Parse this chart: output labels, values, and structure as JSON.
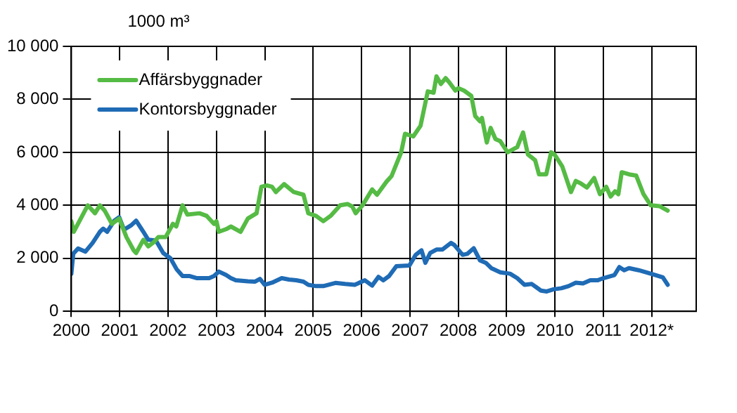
{
  "chart_data": {
    "type": "line",
    "ylabel": "1000 m³",
    "xlim": [
      2000,
      2012.92
    ],
    "xticks": [
      2000,
      2001,
      2002,
      2003,
      2004,
      2005,
      2006,
      2007,
      2008,
      2009,
      2010,
      2011,
      {
        "value": 2012,
        "label": "2012*"
      }
    ],
    "ylim": [
      0,
      10000
    ],
    "yticks": [
      0,
      {
        "value": 2000,
        "label": "2 000"
      },
      {
        "value": 4000,
        "label": "4 000"
      },
      {
        "value": 6000,
        "label": "6 000"
      },
      {
        "value": 8000,
        "label": "8 000"
      },
      {
        "value": 10000,
        "label": "10 000"
      }
    ],
    "grid": true,
    "legend": "top left",
    "marker": "none",
    "line_style": "solid",
    "series": [
      {
        "name": "Affärsbyggnader",
        "color": "#55bb44",
        "x": [
          2000.0,
          2000.05,
          2000.34,
          2000.49,
          2000.59,
          2000.69,
          2000.84,
          2000.99,
          2001.14,
          2001.29,
          2001.34,
          2001.49,
          2001.59,
          2001.7,
          2001.8,
          2001.95,
          2002.1,
          2002.17,
          2002.3,
          2002.4,
          2002.65,
          2002.8,
          2002.95,
          2003.0,
          2003.05,
          2003.2,
          2003.3,
          2003.5,
          2003.65,
          2003.83,
          2003.93,
          2004.05,
          2004.15,
          2004.23,
          2004.4,
          2004.6,
          2004.8,
          2004.9,
          2005.06,
          2005.21,
          2005.36,
          2005.56,
          2005.71,
          2005.81,
          2005.88,
          2006.02,
          2006.22,
          2006.32,
          2006.52,
          2006.62,
          2006.82,
          2006.9,
          2007.07,
          2007.22,
          2007.37,
          2007.49,
          2007.55,
          2007.64,
          2007.74,
          2007.82,
          2007.94,
          2008.0,
          2008.12,
          2008.27,
          2008.35,
          2008.45,
          2008.49,
          2008.59,
          2008.67,
          2008.77,
          2008.87,
          2009.02,
          2009.22,
          2009.34,
          2009.44,
          2009.59,
          2009.67,
          2009.82,
          2009.92,
          2009.99,
          2010.15,
          2010.33,
          2010.43,
          2010.53,
          2010.66,
          2010.81,
          2010.93,
          2011.06,
          2011.15,
          2011.24,
          2011.31,
          2011.38,
          2011.53,
          2011.68,
          2011.83,
          2011.98,
          2012.16,
          2012.33
        ],
        "values": [
          3400,
          3000,
          4000,
          3700,
          4000,
          3800,
          3300,
          3500,
          2800,
          2300,
          2200,
          2700,
          2450,
          2600,
          2800,
          2800,
          3300,
          3200,
          4000,
          3650,
          3700,
          3600,
          3300,
          3400,
          3000,
          3100,
          3200,
          3000,
          3500,
          3700,
          4700,
          4750,
          4700,
          4500,
          4800,
          4500,
          4400,
          3700,
          3600,
          3400,
          3600,
          4000,
          4050,
          3950,
          3700,
          4000,
          4600,
          4400,
          4900,
          5100,
          6000,
          6700,
          6600,
          7000,
          8300,
          8250,
          8870,
          8580,
          8800,
          8630,
          8330,
          8420,
          8330,
          8130,
          7370,
          7170,
          7300,
          6370,
          6920,
          6500,
          6420,
          6000,
          6200,
          6750,
          5920,
          5700,
          5170,
          5170,
          6000,
          5920,
          5470,
          4500,
          4920,
          4830,
          4670,
          5030,
          4420,
          4700,
          4330,
          4530,
          4420,
          5250,
          5170,
          5120,
          4420,
          4000,
          3970,
          3800
        ]
      },
      {
        "name": "Kontorsbyggnader",
        "color": "#1f6bb5",
        "x": [
          2000.0,
          2000.04,
          2000.14,
          2000.29,
          2000.44,
          2000.59,
          2000.66,
          2000.74,
          2000.89,
          2000.99,
          2001.09,
          2001.24,
          2001.34,
          2001.49,
          2001.59,
          2001.75,
          2001.9,
          2002.05,
          2002.18,
          2002.3,
          2002.45,
          2002.6,
          2002.85,
          2002.95,
          2003.05,
          2003.2,
          2003.3,
          2003.4,
          2003.65,
          2003.8,
          2003.9,
          2004.0,
          2004.15,
          2004.35,
          2004.5,
          2004.65,
          2004.8,
          2004.9,
          2005.06,
          2005.21,
          2005.46,
          2005.66,
          2005.86,
          2006.07,
          2006.22,
          2006.35,
          2006.45,
          2006.57,
          2006.72,
          2006.99,
          2007.12,
          2007.24,
          2007.32,
          2007.42,
          2007.55,
          2007.67,
          2007.85,
          2007.92,
          2008.09,
          2008.19,
          2008.32,
          2008.45,
          2008.57,
          2008.69,
          2008.87,
          2009.07,
          2009.22,
          2009.37,
          2009.52,
          2009.71,
          2009.83,
          2009.97,
          2010.13,
          2010.28,
          2010.43,
          2010.58,
          2010.73,
          2010.88,
          2011.0,
          2011.23,
          2011.33,
          2011.43,
          2011.53,
          2011.73,
          2011.98,
          2012.23,
          2012.33
        ],
        "values": [
          1420,
          2170,
          2370,
          2250,
          2580,
          3000,
          3120,
          3000,
          3420,
          3550,
          3080,
          3250,
          3420,
          3000,
          2700,
          2670,
          2200,
          2000,
          1580,
          1330,
          1330,
          1250,
          1250,
          1330,
          1500,
          1370,
          1250,
          1170,
          1130,
          1120,
          1220,
          1000,
          1080,
          1250,
          1200,
          1170,
          1120,
          1000,
          950,
          950,
          1070,
          1030,
          1000,
          1170,
          970,
          1300,
          1170,
          1330,
          1700,
          1730,
          2130,
          2300,
          1830,
          2200,
          2330,
          2330,
          2580,
          2500,
          2130,
          2170,
          2380,
          1920,
          1830,
          1620,
          1470,
          1420,
          1250,
          1000,
          1030,
          780,
          750,
          830,
          870,
          950,
          1080,
          1050,
          1170,
          1170,
          1250,
          1370,
          1670,
          1550,
          1630,
          1550,
          1420,
          1280,
          1000
        ]
      }
    ]
  }
}
